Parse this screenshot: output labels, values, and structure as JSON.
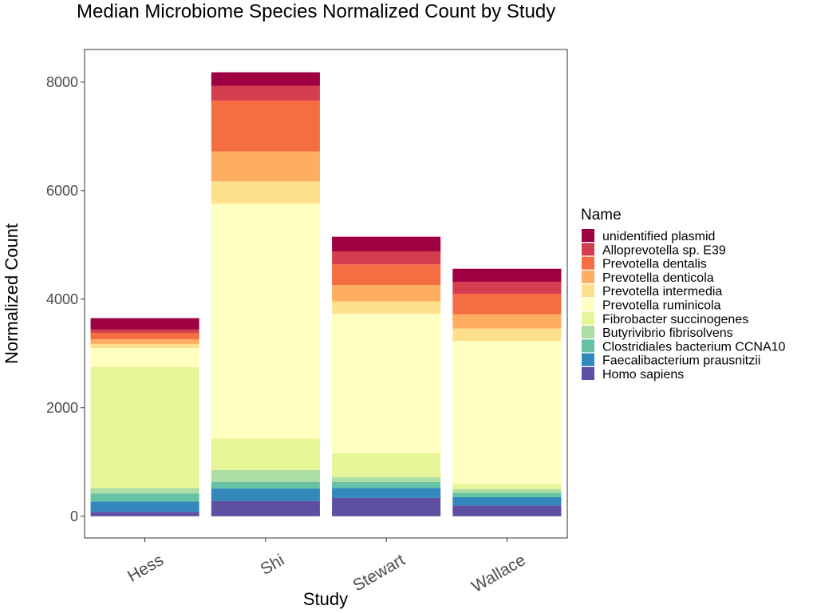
{
  "chart_data": {
    "type": "bar",
    "stacked": true,
    "title": "Median Microbiome Species Normalized Count by Study",
    "xlabel": "Study",
    "ylabel": "Normalized Count",
    "categories": [
      "Hess",
      "Shi",
      "Stewart",
      "Wallace"
    ],
    "ylim": [
      -400,
      8600
    ],
    "yticks": [
      0,
      2000,
      4000,
      6000,
      8000
    ],
    "grid": false,
    "legend": {
      "title": "Name",
      "position": "right"
    },
    "series": [
      {
        "name": "Homo sapiens",
        "color": "#5E4FA2",
        "values": [
          80,
          280,
          340,
          200
        ]
      },
      {
        "name": "Faecalibacterium prausnitzii",
        "color": "#3288BD",
        "values": [
          190,
          230,
          180,
          150
        ]
      },
      {
        "name": "Clostridiales bacterium CCNA10",
        "color": "#66C2A5",
        "values": [
          150,
          120,
          110,
          80
        ]
      },
      {
        "name": "Butyrivibrio fibrisolvens",
        "color": "#ABDDA4",
        "values": [
          100,
          220,
          90,
          70
        ]
      },
      {
        "name": "Fibrobacter succinogenes",
        "color": "#E6F598",
        "values": [
          2230,
          580,
          440,
          90
        ]
      },
      {
        "name": "Prevotella ruminicola",
        "color": "#FFFFBF",
        "values": [
          350,
          4330,
          2570,
          2640
        ]
      },
      {
        "name": "Prevotella intermedia",
        "color": "#FEE08B",
        "values": [
          70,
          410,
          230,
          230
        ]
      },
      {
        "name": "Prevotella denticola",
        "color": "#FDAE61",
        "values": [
          90,
          550,
          300,
          260
        ]
      },
      {
        "name": "Prevotella dentalis",
        "color": "#F46D43",
        "values": [
          120,
          940,
          380,
          380
        ]
      },
      {
        "name": "Alloprevotella sp. E39",
        "color": "#D53E4F",
        "values": [
          60,
          270,
          240,
          220
        ]
      },
      {
        "name": "unidentified plasmid",
        "color": "#9E0142",
        "values": [
          210,
          250,
          270,
          240
        ]
      }
    ]
  }
}
